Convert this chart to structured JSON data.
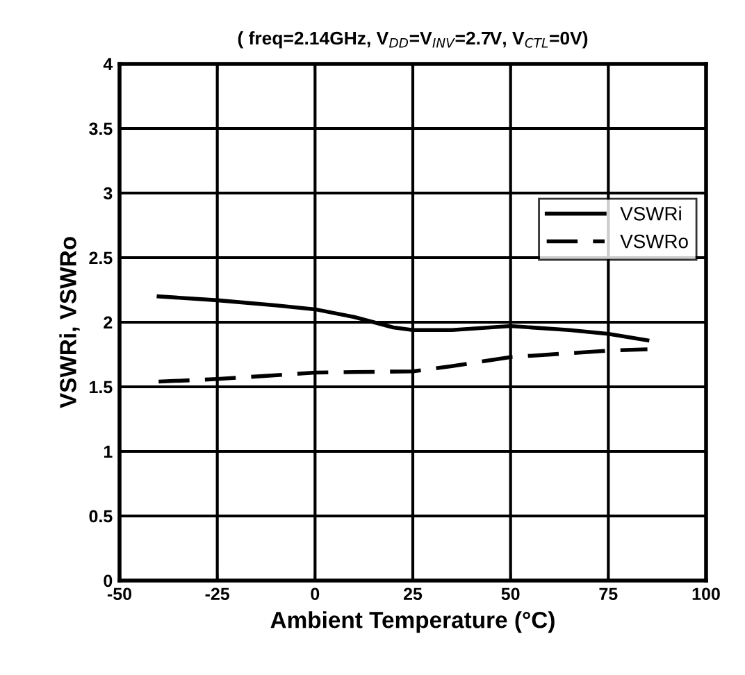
{
  "chart_data": {
    "type": "line",
    "title": "( freq=2.14GHz, V$_{DD}$=V$_{INV}$=2.7V, V$_{CTL}$=0V)",
    "xlabel": "Ambient Temperature (°C)",
    "ylabel": "VSWRi, VSWRo",
    "series": [
      {
        "name": "VSWRi",
        "color": "#000000",
        "line_style": "solid",
        "x": [
          -40,
          -25,
          -10,
          0,
          10,
          20,
          25,
          35,
          50,
          65,
          75,
          85
        ],
        "values": [
          2.2,
          2.17,
          2.13,
          2.1,
          2.04,
          1.96,
          1.94,
          1.94,
          1.97,
          1.94,
          1.91,
          1.86
        ]
      },
      {
        "name": "VSWRo",
        "color": "#000000",
        "line_style": "dashed",
        "x": [
          -40,
          -25,
          0,
          25,
          35,
          50,
          65,
          75,
          85
        ],
        "values": [
          1.54,
          1.56,
          1.61,
          1.62,
          1.66,
          1.73,
          1.76,
          1.78,
          1.79
        ]
      }
    ],
    "xlim": [
      -50,
      100
    ],
    "xticks": [
      -50,
      -25,
      0,
      25,
      50,
      75,
      100
    ],
    "ylim": [
      0,
      4
    ],
    "yticks": [
      0,
      0.5,
      1,
      1.5,
      2,
      2.5,
      3,
      3.5,
      4
    ],
    "grid": true,
    "legend": "right",
    "marker": "none"
  }
}
